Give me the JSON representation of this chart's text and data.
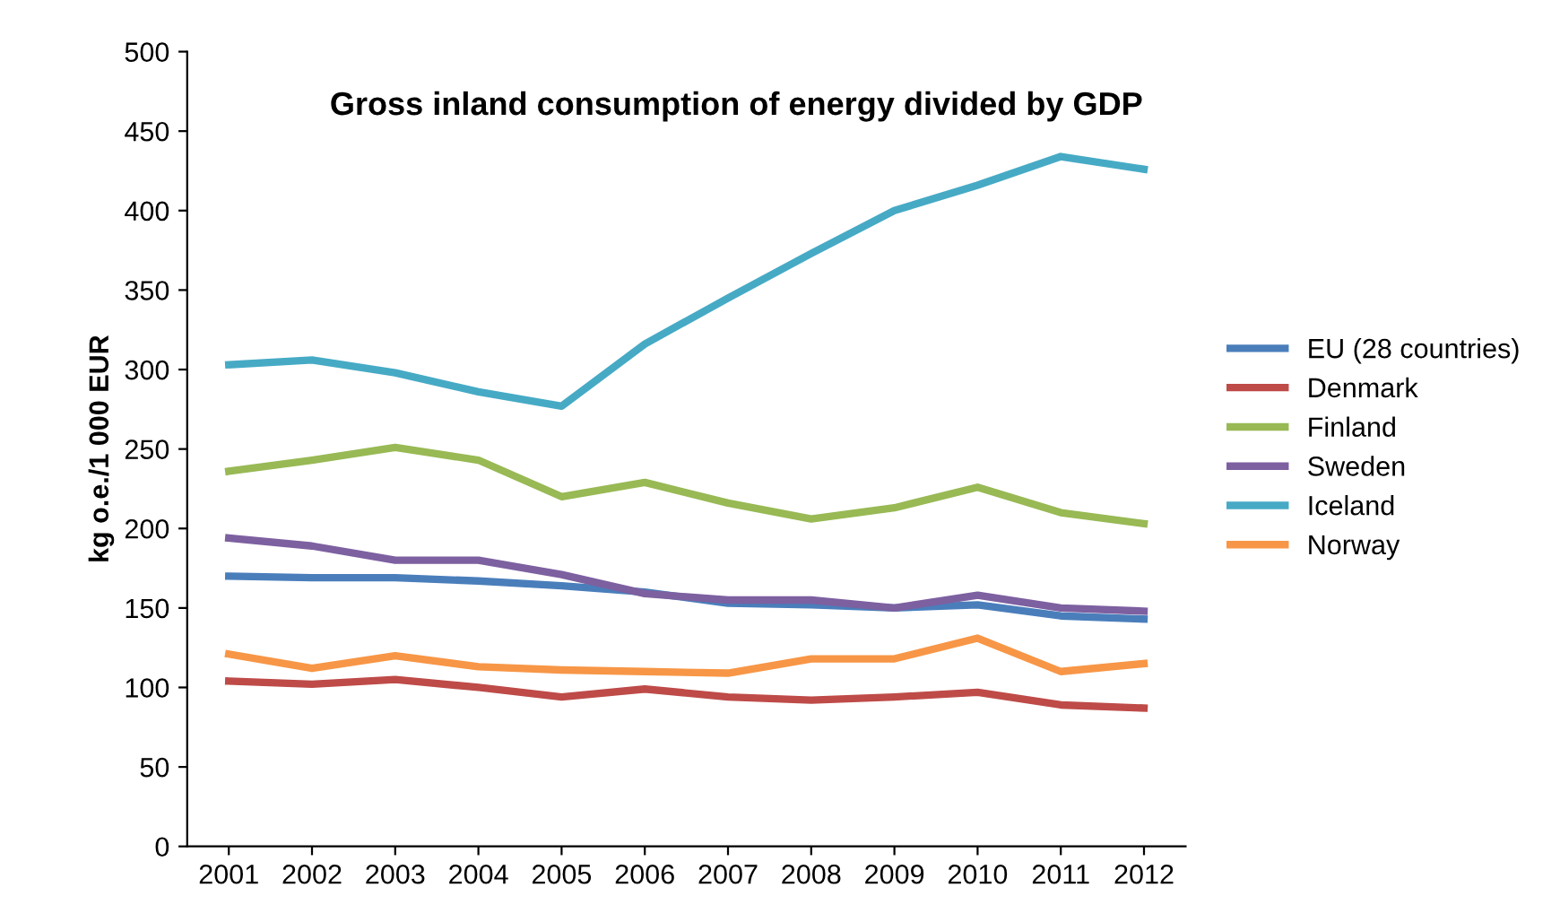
{
  "chart_data": {
    "type": "line",
    "title": "Gross inland consumption of energy divided by GDP",
    "ylabel": "kg o.e./1 000 EUR",
    "categories": [
      "2001",
      "2002",
      "2003",
      "2004",
      "2005",
      "2006",
      "2007",
      "2008",
      "2009",
      "2010",
      "2011",
      "2012"
    ],
    "series": [
      {
        "name": "EU (28 countries)",
        "color": "#4a7ebb",
        "values": [
          170,
          169,
          169,
          167,
          164,
          160,
          153,
          152,
          150,
          152,
          145,
          143
        ]
      },
      {
        "name": "Denmark",
        "color": "#be4b48",
        "values": [
          104,
          102,
          105,
          100,
          94,
          99,
          94,
          92,
          94,
          97,
          89,
          87
        ]
      },
      {
        "name": "Finland",
        "color": "#98b954",
        "values": [
          236,
          243,
          251,
          243,
          220,
          229,
          216,
          206,
          213,
          226,
          210,
          203
        ]
      },
      {
        "name": "Sweden",
        "color": "#7d60a0",
        "values": [
          194,
          189,
          180,
          180,
          171,
          159,
          155,
          155,
          150,
          158,
          150,
          148
        ]
      },
      {
        "name": "Iceland",
        "color": "#46aac5",
        "values": [
          303,
          306,
          298,
          286,
          277,
          316,
          345,
          373,
          400,
          416,
          434,
          426
        ]
      },
      {
        "name": "Norway",
        "color": "#f79646",
        "values": [
          121,
          112,
          120,
          113,
          111,
          110,
          109,
          118,
          118,
          131,
          110,
          115
        ]
      }
    ],
    "ylim": [
      0,
      500
    ],
    "yticks": [
      0,
      50,
      100,
      150,
      200,
      250,
      300,
      350,
      400,
      450,
      500
    ],
    "grid": false,
    "legend": "right",
    "marker": "none",
    "line_style": "solid"
  }
}
